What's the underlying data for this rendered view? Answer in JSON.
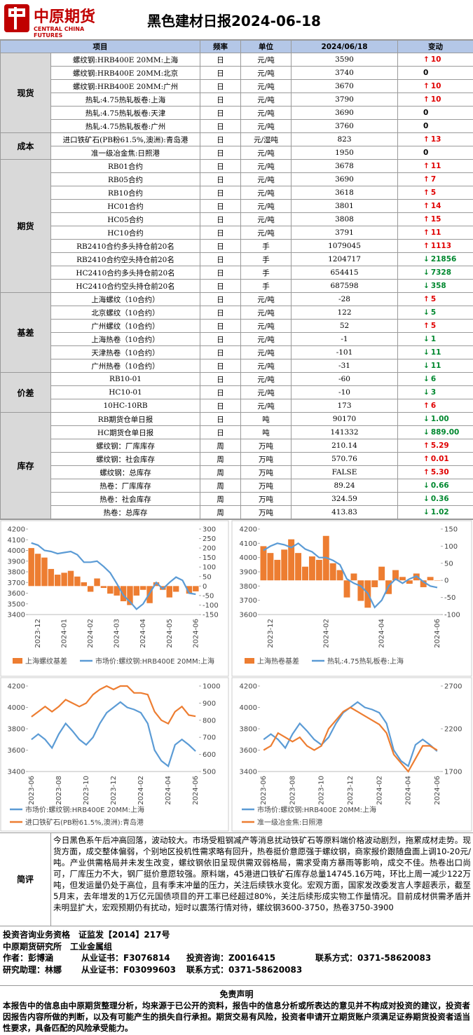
{
  "header": {
    "logo_cn": "中原期货",
    "logo_en": "CENTRAL CHINA FUTURES",
    "title": "黑色建材日报2024-06-18"
  },
  "table": {
    "columns": [
      "项目",
      "频率",
      "单位",
      "2024/06/18",
      "变动"
    ],
    "groups": [
      {
        "name": "现货",
        "rows": [
          {
            "item": "螺纹钢:HRB400E 20MM:上海",
            "freq": "日",
            "unit": "元/吨",
            "value": "3590",
            "change": "10",
            "dir": "up"
          },
          {
            "item": "螺纹钢:HRB400E 20MM:北京",
            "freq": "日",
            "unit": "元/吨",
            "value": "3740",
            "change": "0",
            "dir": null
          },
          {
            "item": "螺纹钢:HRB400E 20MM:广州",
            "freq": "日",
            "unit": "元/吨",
            "value": "3670",
            "change": "10",
            "dir": "up"
          },
          {
            "item": "热轧:4.75热轧板卷:上海",
            "freq": "日",
            "unit": "元/吨",
            "value": "3790",
            "change": "10",
            "dir": "up"
          },
          {
            "item": "热轧:4.75热轧板卷:天津",
            "freq": "日",
            "unit": "元/吨",
            "value": "3690",
            "change": "0",
            "dir": null
          },
          {
            "item": "热轧:4.75热轧板卷:广州",
            "freq": "日",
            "unit": "元/吨",
            "value": "3760",
            "change": "0",
            "dir": null
          }
        ]
      },
      {
        "name": "成本",
        "rows": [
          {
            "item": "进口铁矿石(PB粉61.5%,澳洲):青岛港",
            "freq": "日",
            "unit": "元/湿吨",
            "value": "823",
            "change": "13",
            "dir": "up"
          },
          {
            "item": "准一级冶金焦:日照港",
            "freq": "日",
            "unit": "元/吨",
            "value": "1950",
            "change": "0",
            "dir": null
          }
        ]
      },
      {
        "name": "期货",
        "rows": [
          {
            "item": "RB01合约",
            "freq": "日",
            "unit": "元/吨",
            "value": "3678",
            "change": "11",
            "dir": "up"
          },
          {
            "item": "RB05合约",
            "freq": "日",
            "unit": "元/吨",
            "value": "3690",
            "change": "7",
            "dir": "up"
          },
          {
            "item": "RB10合约",
            "freq": "日",
            "unit": "元/吨",
            "value": "3618",
            "change": "5",
            "dir": "up"
          },
          {
            "item": "HC01合约",
            "freq": "日",
            "unit": "元/吨",
            "value": "3801",
            "change": "14",
            "dir": "up"
          },
          {
            "item": "HC05合约",
            "freq": "日",
            "unit": "元/吨",
            "value": "3808",
            "change": "15",
            "dir": "up"
          },
          {
            "item": "HC10合约",
            "freq": "日",
            "unit": "元/吨",
            "value": "3791",
            "change": "11",
            "dir": "up"
          },
          {
            "item": "RB2410合约多头持仓前20名",
            "freq": "日",
            "unit": "手",
            "value": "1079045",
            "change": "1113",
            "dir": "up"
          },
          {
            "item": "RB2410合约空头持仓前20名",
            "freq": "日",
            "unit": "手",
            "value": "1204717",
            "change": "21856",
            "dir": "down"
          },
          {
            "item": "HC2410合约多头持仓前20名",
            "freq": "日",
            "unit": "手",
            "value": "654415",
            "change": "7328",
            "dir": "down"
          },
          {
            "item": "HC2410合约空头持仓前20名",
            "freq": "日",
            "unit": "手",
            "value": "687598",
            "change": "358",
            "dir": "down"
          }
        ]
      },
      {
        "name": "基差",
        "rows": [
          {
            "item": "上海螺纹（10合约）",
            "freq": "日",
            "unit": "元/吨",
            "value": "-28",
            "change": "5",
            "dir": "up"
          },
          {
            "item": "北京螺纹（10合约）",
            "freq": "日",
            "unit": "元/吨",
            "value": "122",
            "change": "5",
            "dir": "down"
          },
          {
            "item": "广州螺纹（10合约）",
            "freq": "日",
            "unit": "元/吨",
            "value": "52",
            "change": "5",
            "dir": "up"
          },
          {
            "item": "上海热卷（10合约）",
            "freq": "日",
            "unit": "元/吨",
            "value": "-1",
            "change": "1",
            "dir": "down"
          },
          {
            "item": "天津热卷（10合约）",
            "freq": "日",
            "unit": "元/吨",
            "value": "-101",
            "change": "11",
            "dir": "down"
          },
          {
            "item": "广州热卷（10合约）",
            "freq": "日",
            "unit": "元/吨",
            "value": "-31",
            "change": "11",
            "dir": "down"
          }
        ]
      },
      {
        "name": "价差",
        "rows": [
          {
            "item": "RB10-01",
            "freq": "日",
            "unit": "元/吨",
            "value": "-60",
            "change": "6",
            "dir": "down"
          },
          {
            "item": "HC10-01",
            "freq": "日",
            "unit": "元/吨",
            "value": "-10",
            "change": "3",
            "dir": "down"
          },
          {
            "item": "10HC-10RB",
            "freq": "日",
            "unit": "元/吨",
            "value": "173",
            "change": "6",
            "dir": "up"
          }
        ]
      },
      {
        "name": "库存",
        "rows": [
          {
            "item": "RB期货仓单日报",
            "freq": "日",
            "unit": "吨",
            "value": "90170",
            "change": "1.00",
            "dir": "down"
          },
          {
            "item": "HC期货仓单日报",
            "freq": "日",
            "unit": "吨",
            "value": "141332",
            "change": "889.00",
            "dir": "down"
          },
          {
            "item": "螺纹钢：厂库库存",
            "freq": "周",
            "unit": "万吨",
            "value": "210.14",
            "change": "5.29",
            "dir": "up"
          },
          {
            "item": "螺纹钢：社会库存",
            "freq": "周",
            "unit": "万吨",
            "value": "570.76",
            "change": "0.01",
            "dir": "up"
          },
          {
            "item": "螺纹钢：总库存",
            "freq": "周",
            "unit": "万吨",
            "value": "FALSE",
            "change": "5.30",
            "dir": "up"
          },
          {
            "item": "热卷：厂库库存",
            "freq": "周",
            "unit": "万吨",
            "value": "89.24",
            "change": "0.66",
            "dir": "down"
          },
          {
            "item": "热卷：社会库存",
            "freq": "周",
            "unit": "万吨",
            "value": "324.59",
            "change": "0.36",
            "dir": "down"
          },
          {
            "item": "热卷：总库存",
            "freq": "周",
            "unit": "万吨",
            "value": "413.83",
            "change": "1.02",
            "dir": "down"
          }
        ]
      }
    ]
  },
  "chart_data": [
    {
      "type": "line",
      "categories": [
        null,
        "2023-12",
        null,
        null,
        null,
        "2024-01",
        null,
        null,
        null,
        "2024-02",
        null,
        null,
        null,
        "2024-03",
        null,
        null,
        null,
        "2024-04",
        null,
        null,
        null,
        "2024-05",
        null,
        null,
        null,
        "2024-06"
      ],
      "ylim": [
        3400,
        4200
      ],
      "yticks": [
        3400,
        3500,
        3600,
        3700,
        3800,
        3900,
        4000,
        4100,
        4200
      ],
      "y2lim": [
        -150,
        300
      ],
      "y2ticks": [
        -150,
        -100,
        -50,
        0,
        50,
        100,
        150,
        200,
        250,
        300
      ],
      "series": [
        {
          "name": "上海螺纹基差",
          "type": "bar",
          "axis": "y2",
          "color": "#ed7d31",
          "values": [
            200,
            170,
            150,
            90,
            60,
            70,
            80,
            50,
            20,
            -30,
            40,
            -10,
            -40,
            -50,
            -80,
            -100,
            -50,
            -20,
            -90,
            20,
            -20,
            -60,
            -30,
            0,
            -40,
            -28
          ]
        },
        {
          "name": "市场价:螺纹钢:HRB400E 20MM:上海",
          "type": "line",
          "color": "#5b9bd5",
          "values": [
            4070,
            4050,
            4000,
            3990,
            3970,
            3980,
            3990,
            3960,
            3890,
            3890,
            3900,
            3850,
            3790,
            3690,
            3580,
            3520,
            3450,
            3500,
            3600,
            3700,
            3640,
            3700,
            3750,
            3720,
            3600,
            3590
          ]
        }
      ]
    },
    {
      "type": "line",
      "categories": [
        null,
        "2023-12",
        null,
        null,
        null,
        null,
        null,
        null,
        null,
        "2024-02",
        null,
        null,
        null,
        null,
        null,
        null,
        null,
        "2024-04",
        null,
        null,
        null,
        null,
        null,
        null,
        null,
        "2024-06"
      ],
      "ylim": [
        3600,
        4200
      ],
      "yticks": [
        3600,
        3700,
        3800,
        3900,
        4000,
        4100,
        4200
      ],
      "y2lim": [
        -100,
        150
      ],
      "y2ticks": [
        -100,
        -50,
        0,
        50,
        100,
        150
      ],
      "series": [
        {
          "name": "上海热卷基差",
          "type": "bar",
          "axis": "y2",
          "color": "#ed7d31",
          "values": [
            100,
            80,
            60,
            90,
            120,
            80,
            40,
            70,
            60,
            130,
            50,
            30,
            -50,
            20,
            -60,
            -80,
            -20,
            40,
            -40,
            30,
            10,
            -10,
            20,
            -20,
            10,
            -1
          ]
        },
        {
          "name": "热轧:4.75热轧板卷:上海",
          "type": "line",
          "color": "#5b9bd5",
          "values": [
            4050,
            4080,
            4100,
            4090,
            4070,
            4100,
            4060,
            4040,
            4000,
            4000,
            3980,
            3950,
            3850,
            3820,
            3800,
            3750,
            3650,
            3700,
            3800,
            3850,
            3820,
            3850,
            3870,
            3830,
            3800,
            3790
          ]
        }
      ]
    },
    {
      "type": "line",
      "categories": [
        "2023-06",
        null,
        null,
        null,
        "2023-08",
        null,
        null,
        null,
        "2023-10",
        null,
        null,
        null,
        "2023-12",
        null,
        null,
        null,
        "2024-02",
        null,
        null,
        null,
        "2024-04",
        null,
        null,
        null,
        "2024-06"
      ],
      "ylim": [
        3400,
        4200
      ],
      "yticks": [
        3400,
        3600,
        3800,
        4000,
        4200
      ],
      "y2lim": [
        500,
        1000
      ],
      "y2ticks": [
        500,
        600,
        700,
        800,
        900,
        1000
      ],
      "series": [
        {
          "name": "市场价:螺纹钢:HRB400E 20MM:上海",
          "type": "line",
          "color": "#5b9bd5",
          "values": [
            3700,
            3750,
            3700,
            3620,
            3750,
            3850,
            3780,
            3700,
            3650,
            3720,
            3850,
            3950,
            4000,
            4050,
            4000,
            3980,
            3950,
            3850,
            3600,
            3500,
            3450,
            3650,
            3700,
            3650,
            3590
          ]
        },
        {
          "name": "进口铁矿石(PB粉61.5%,澳洲):青岛港",
          "type": "line",
          "axis": "y2",
          "color": "#ed7d31",
          "values": [
            820,
            850,
            880,
            850,
            880,
            920,
            900,
            880,
            900,
            950,
            980,
            1000,
            980,
            1000,
            1000,
            960,
            960,
            950,
            850,
            800,
            780,
            850,
            880,
            830,
            823
          ]
        }
      ]
    },
    {
      "type": "line",
      "categories": [
        "2023-06",
        null,
        null,
        null,
        "2023-08",
        null,
        null,
        null,
        "2023-10",
        null,
        null,
        null,
        "2023-12",
        null,
        null,
        null,
        "2024-02",
        null,
        null,
        null,
        "2024-04",
        null,
        null,
        null,
        "2024-06"
      ],
      "ylim": [
        3400,
        4200
      ],
      "yticks": [
        3400,
        3600,
        3800,
        4000,
        4200
      ],
      "y2lim": [
        1700,
        2700
      ],
      "y2ticks": [
        1700,
        2200,
        2700
      ],
      "series": [
        {
          "name": "市场价:螺纹钢:HRB400E 20MM:上海",
          "type": "line",
          "color": "#5b9bd5",
          "values": [
            3700,
            3750,
            3700,
            3620,
            3750,
            3850,
            3780,
            3700,
            3650,
            3720,
            3850,
            3950,
            4000,
            4050,
            4000,
            3980,
            3950,
            3850,
            3600,
            3500,
            3450,
            3650,
            3700,
            3650,
            3590
          ]
        },
        {
          "name": "准一级冶金焦:日照港",
          "type": "line",
          "axis": "y2",
          "color": "#ed7d31",
          "values": [
            1950,
            2000,
            2150,
            2100,
            2050,
            2100,
            2000,
            1950,
            2000,
            2200,
            2300,
            2400,
            2450,
            2400,
            2350,
            2300,
            2250,
            2150,
            1900,
            1800,
            1700,
            1850,
            2000,
            2000,
            1950
          ]
        }
      ]
    }
  ],
  "commentary": {
    "label": "简评",
    "text": "今日黑色系午后冲高回落，波动较大。市场受粗钢减产等消息扰动铁矿石等原料端价格波动剧烈，拖累成材走势。现货方面，成交整体偏弱，个别地区投机性需求略有回升，热卷挺价意愿强于螺纹钢，商家报价跟随盘面上调10-20元/吨。产业供需格局并未发生改变，螺纹钢依旧呈现供需双弱格局，需求受南方暴雨等影响，成交不佳。热卷出口尚可，厂库压力不大，钢厂挺价意愿较强。原料端，45港进口铁矿石库存总量14745.16万吨，环比上周一减少122万吨，但发运量仍处于高位，且有季末冲量的压力，关注后续铁水变化。宏观方面，国家发改委发言人李超表示，截至5月末，去年增发的1万亿元国债项目的开工率已经超过80%，关注后续形成实物工作量情况。目前成材供需矛盾并未明显扩大，宏观预期仍有扰动，短时以震荡行情对待，螺纹钢3600-3750，热卷3750-3900"
  },
  "info": [
    [
      "投资咨询业务资格　证监发【2014】217号"
    ],
    [
      "中原期货研究所　工业金属组"
    ],
    [
      "作者：彭博涵",
      "从业证书：F3076814",
      "投资咨询：Z0016415",
      "联系方式：0371-58620083"
    ],
    [
      "研究助理：林娜",
      "从业证书：F03099603",
      "联系方式：0371-58620083"
    ]
  ],
  "disclaimer": {
    "title": "免责声明",
    "text": "本报告中的信息由中原期货整理分析，均来源于已公开的资料，报告中的信息分析或所表达的意见并不构成对投资的建议，投资者因报告内容所做的判断，以及有可能产生的损失自行承担。期货交易有风险，投资者申请开立期货账户须满足证券期货投资者适当性要求，具备匹配的风险承受能力。"
  }
}
